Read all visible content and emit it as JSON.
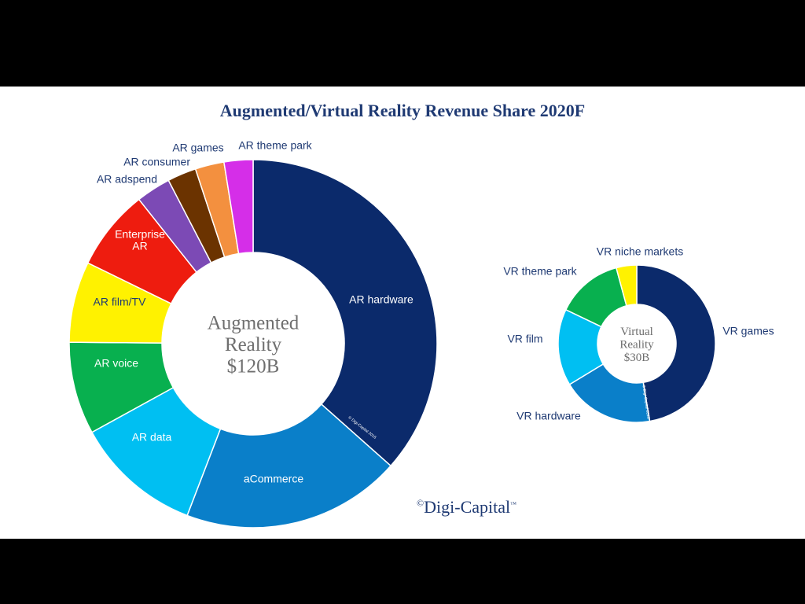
{
  "title": "Augmented/Virtual Reality Revenue Share 2020F",
  "brand": {
    "symbol": "©",
    "name": "Digi-Capital",
    "tm": "™"
  },
  "chart_data": [
    {
      "type": "pie",
      "title": "Augmented Reality $120B",
      "center_label": [
        "Augmented",
        "Reality",
        "$120B"
      ],
      "watermark": "© Digi-Capital 2016",
      "series": [
        {
          "name": "AR hardware",
          "value": 36,
          "color": "#0b2a6b",
          "label_color": "#ffffff",
          "label_inside": true
        },
        {
          "name": "aCommerce",
          "value": 19,
          "color": "#0a7fc9",
          "label_color": "#ffffff",
          "label_inside": true
        },
        {
          "name": "AR data",
          "value": 11,
          "color": "#00bff2",
          "label_color": "#ffffff",
          "label_inside": true
        },
        {
          "name": "AR voice",
          "value": 8,
          "color": "#08b04f",
          "label_color": "#ffffff",
          "label_inside": true
        },
        {
          "name": "AR film/TV",
          "value": 7,
          "color": "#fff200",
          "label_color": "#1f3a73",
          "label_inside": true
        },
        {
          "name": "Enterprise AR",
          "value": 7,
          "color": "#ee1c0f",
          "label_color": "#ffffff",
          "label_inside": true
        },
        {
          "name": "AR adspend",
          "value": 3,
          "color": "#7c4ab5",
          "label_color": "#1f3a73",
          "label_inside": false
        },
        {
          "name": "AR consumer",
          "value": 2.5,
          "color": "#6b3300",
          "label_color": "#1f3a73",
          "label_inside": false
        },
        {
          "name": "AR games",
          "value": 2.5,
          "color": "#f3903f",
          "label_color": "#1f3a73",
          "label_inside": false
        },
        {
          "name": "AR theme park",
          "value": 2.5,
          "color": "#d52ee8",
          "label_color": "#1f3a73",
          "label_inside": false
        }
      ]
    },
    {
      "type": "pie",
      "title": "Virtual Reality $30B",
      "center_label": [
        "Virtual",
        "Reality",
        "$30B"
      ],
      "watermark": "© Digi-Capital 2016",
      "series": [
        {
          "name": "VR games",
          "value": 45,
          "color": "#0b2a6b",
          "label_color": "#1f3a73",
          "label_inside": false
        },
        {
          "name": "VR hardware",
          "value": 18,
          "color": "#0a7fc9",
          "label_color": "#1f3a73",
          "label_inside": false
        },
        {
          "name": "VR film",
          "value": 15,
          "color": "#00bff2",
          "label_color": "#1f3a73",
          "label_inside": false
        },
        {
          "name": "VR theme park",
          "value": 13,
          "color": "#08b04f",
          "label_color": "#1f3a73",
          "label_inside": false
        },
        {
          "name": "VR niche markets",
          "value": 4,
          "color": "#fff200",
          "label_color": "#1f3a73",
          "label_inside": false
        }
      ]
    }
  ]
}
